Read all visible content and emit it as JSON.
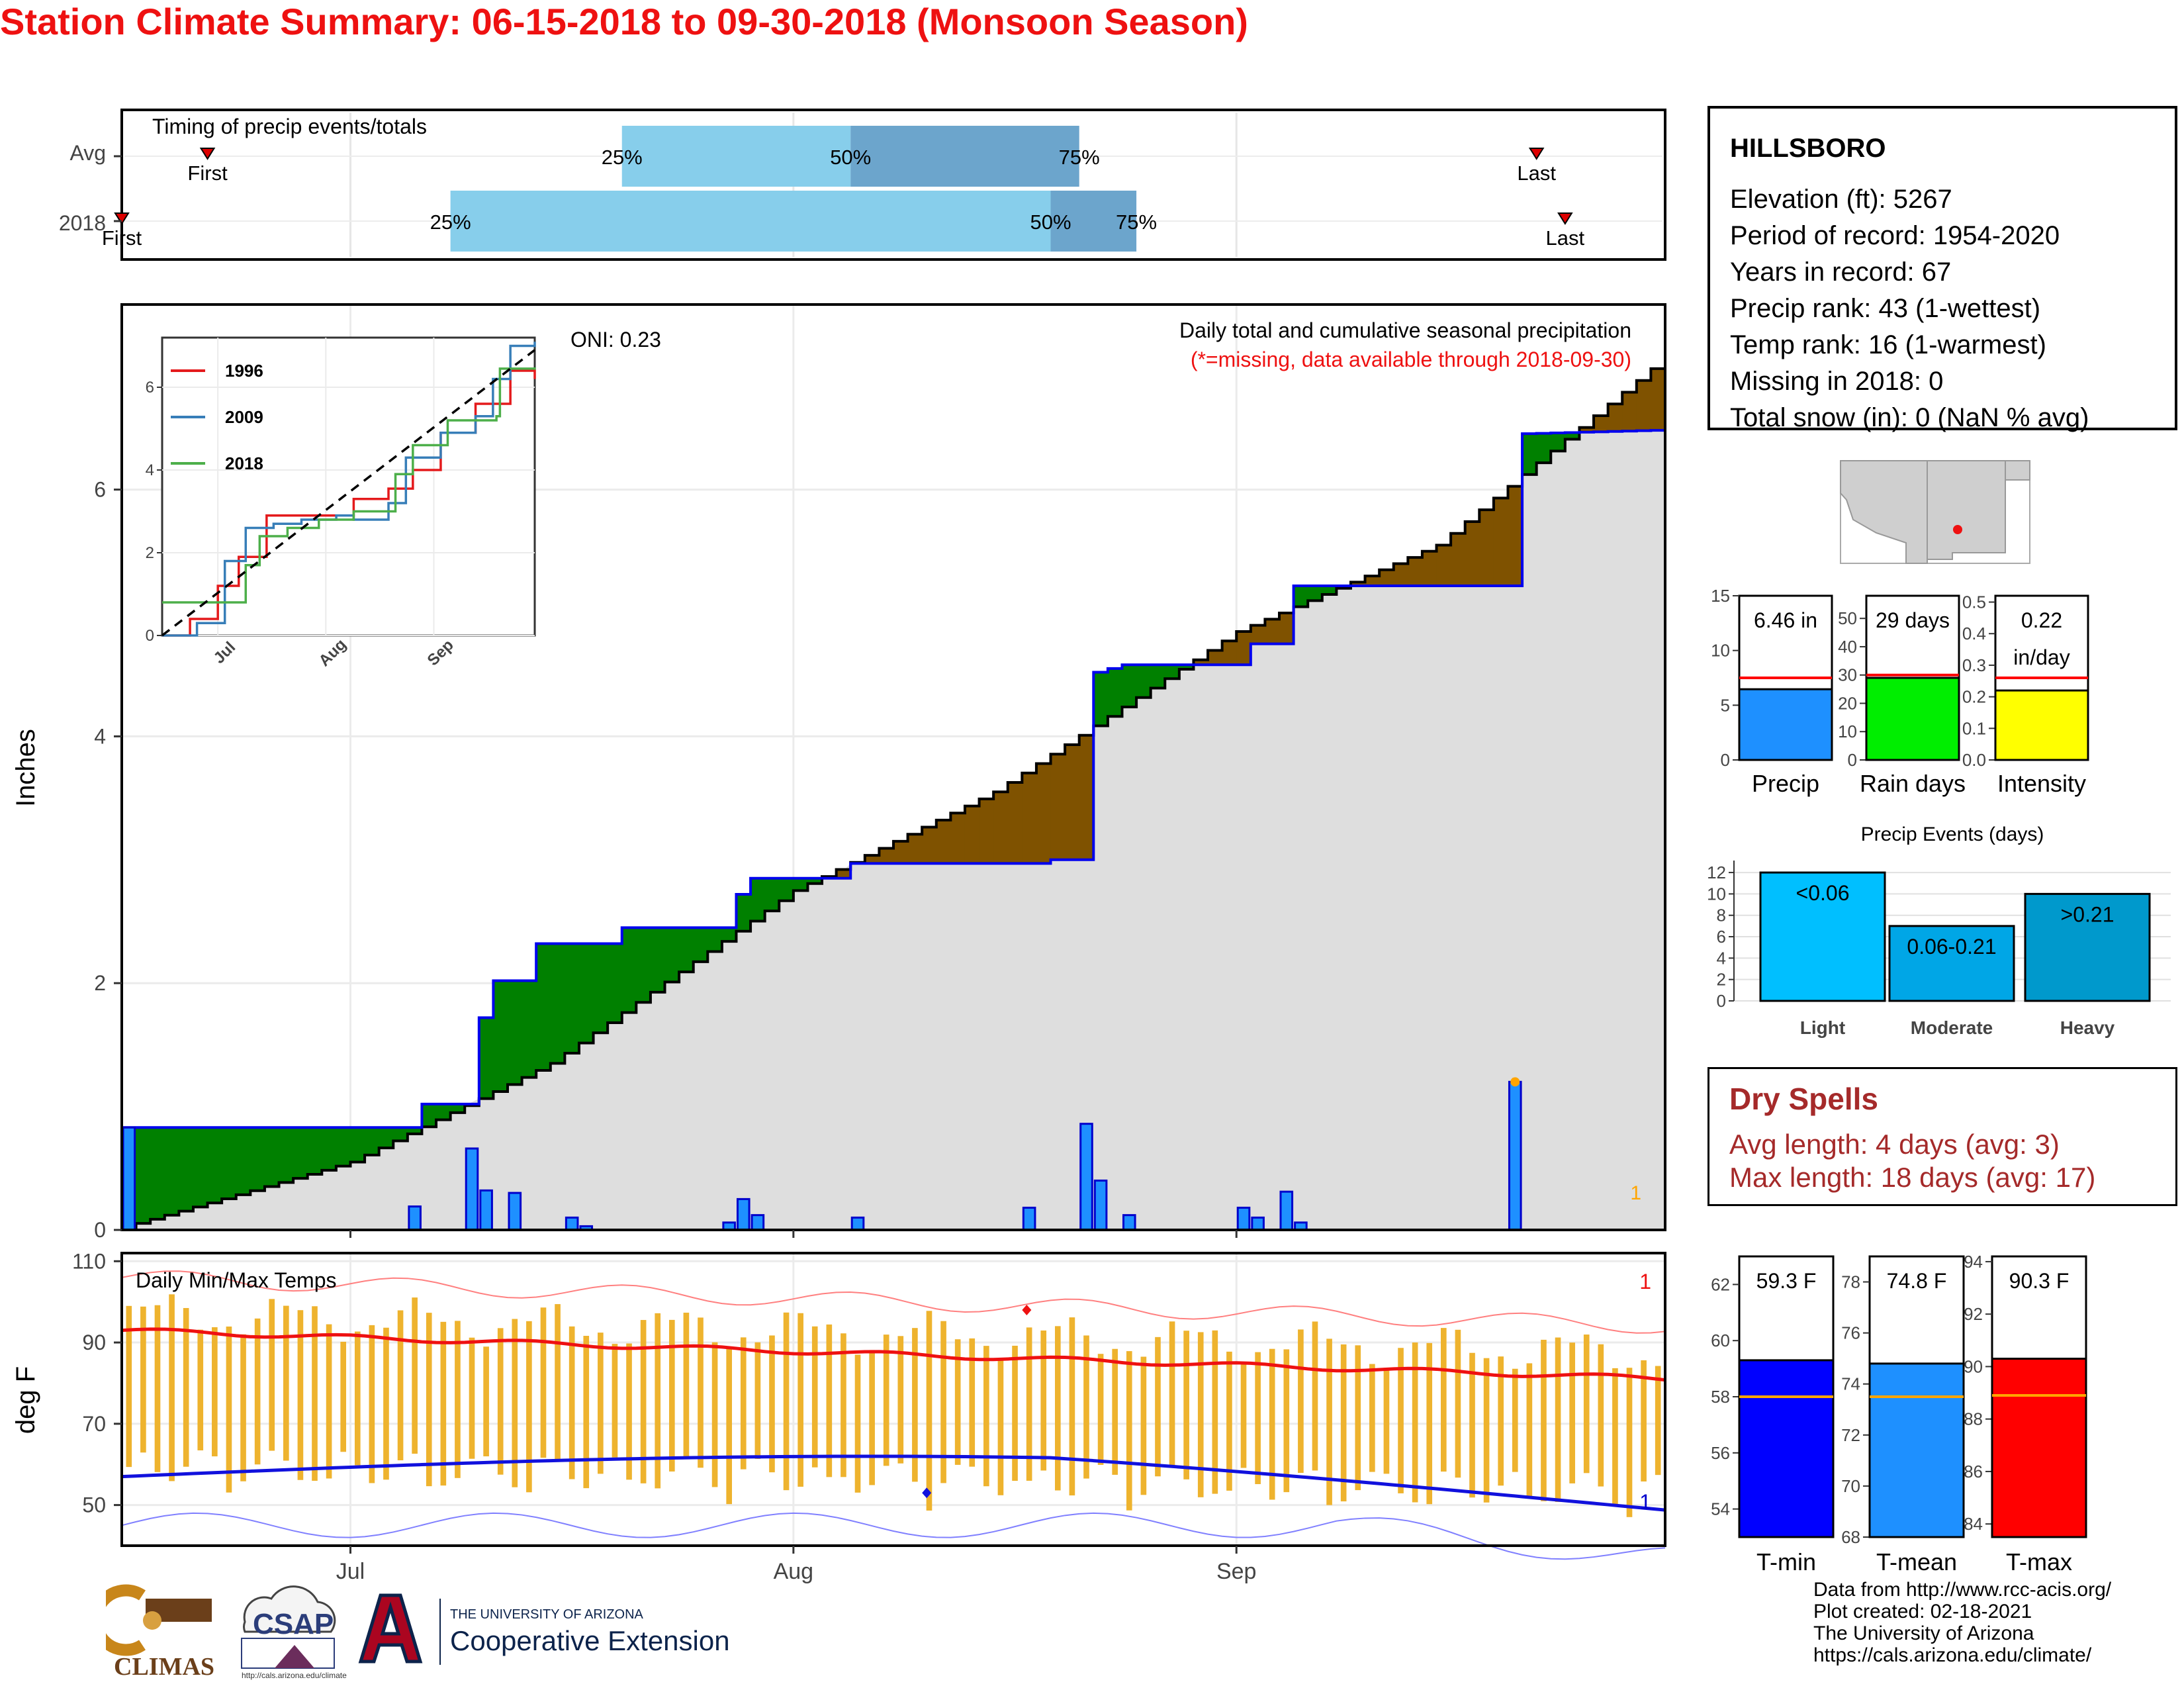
{
  "title": "Station Climate Summary: 06-15-2018 to 09-30-2018 (Monsoon Season)",
  "timing": {
    "label": "Timing of precip events/totals",
    "rows": [
      {
        "name": "Avg",
        "first_label": "First",
        "last_label": "Last",
        "first": "06-21",
        "last": "09-22",
        "q25": "07-20",
        "q50": "08-05",
        "q75": "08-21",
        "q25_label": "25%",
        "q50_label": "50%",
        "q75_label": "75%"
      },
      {
        "name": "2018",
        "first_label": "First",
        "last_label": "Last",
        "first": "06-15",
        "last": "09-24",
        "q25": "07-08",
        "q50": "08-19",
        "q75": "08-25",
        "q25_label": "25%",
        "q50_label": "50%",
        "q75_label": "75%"
      }
    ],
    "colors": {
      "light": "#87ceeb",
      "dark": "#6ca5cc",
      "marker": "#dd0000"
    }
  },
  "precip_panel": {
    "ylabel": "Inches",
    "yticks": [
      0,
      2,
      4,
      6
    ],
    "ylim": [
      0,
      7.5
    ],
    "annotation": "Daily total and cumulative seasonal precipitation",
    "note": "(*=missing, data available through 2018-09-30)",
    "oni": "ONI: 0.23",
    "corner_count": "1",
    "xticks": [
      "Jul",
      "Aug",
      "Sep"
    ]
  },
  "chart_data": [
    {
      "type": "area",
      "title": "Daily total and cumulative seasonal precipitation",
      "ylabel": "Inches",
      "x_start": "2018-06-15",
      "x_end": "2018-09-30",
      "ylim": [
        0,
        7.5
      ],
      "series": [
        {
          "name": "2018 cumulative",
          "color": "#0000ee",
          "points": [
            [
              "06-15",
              0.83
            ],
            [
              "07-05",
              0.83
            ],
            [
              "07-05",
              1.02
            ],
            [
              "07-09",
              1.02
            ],
            [
              "07-10",
              1.72
            ],
            [
              "07-11",
              2.02
            ],
            [
              "07-13",
              2.02
            ],
            [
              "07-13",
              2.32
            ],
            [
              "07-19",
              2.32
            ],
            [
              "07-19",
              2.37
            ],
            [
              "07-20",
              2.45
            ],
            [
              "07-27",
              2.45
            ],
            [
              "07-27",
              2.55
            ],
            [
              "07-28",
              2.72
            ],
            [
              "07-29",
              2.85
            ],
            [
              "08-04",
              2.85
            ],
            [
              "08-04",
              2.97
            ],
            [
              "08-18",
              2.97
            ],
            [
              "08-18",
              3.0
            ],
            [
              "08-21",
              3.0
            ],
            [
              "08-21",
              3.85
            ],
            [
              "08-22",
              4.52
            ],
            [
              "08-24",
              4.58
            ],
            [
              "09-01",
              4.58
            ],
            [
              "09-01",
              4.75
            ],
            [
              "09-02",
              4.75
            ],
            [
              "09-04",
              4.75
            ],
            [
              "09-04",
              5.22
            ],
            [
              "09-20",
              5.22
            ],
            [
              "09-20",
              6.45
            ],
            [
              "09-30",
              6.48
            ]
          ]
        },
        {
          "name": "Average cumulative",
          "color": "#000000",
          "points": [
            [
              "06-15",
              0.02
            ],
            [
              "07-01",
              0.55
            ],
            [
              "07-15",
              1.35
            ],
            [
              "08-01",
              2.75
            ],
            [
              "08-15",
              3.55
            ],
            [
              "09-01",
              4.85
            ],
            [
              "09-15",
              5.55
            ],
            [
              "09-30",
              6.98
            ]
          ]
        }
      ],
      "daily_bars": [
        [
          "06-15",
          0.83
        ],
        [
          "07-05",
          0.19
        ],
        [
          "07-09",
          0.66
        ],
        [
          "07-10",
          0.32
        ],
        [
          "07-12",
          0.3
        ],
        [
          "07-16",
          0.1
        ],
        [
          "07-17",
          0.03
        ],
        [
          "07-27",
          0.06
        ],
        [
          "07-28",
          0.25
        ],
        [
          "07-29",
          0.12
        ],
        [
          "08-05",
          0.1
        ],
        [
          "08-17",
          0.18
        ],
        [
          "08-21",
          0.86
        ],
        [
          "08-22",
          0.4
        ],
        [
          "08-24",
          0.12
        ],
        [
          "09-01",
          0.18
        ],
        [
          "09-02",
          0.1
        ],
        [
          "09-04",
          0.31
        ],
        [
          "09-05",
          0.06
        ],
        [
          "09-20",
          1.2
        ]
      ],
      "fill_colors": {
        "above": "#008000",
        "below": "#7f5200",
        "base": "#dedede",
        "bar": "#1e90ff"
      }
    },
    {
      "type": "line",
      "title": "",
      "ylabel": "",
      "xticks": [
        "Jul",
        "Aug",
        "Sep"
      ],
      "yticks": [
        0,
        2,
        4,
        6
      ],
      "series": [
        {
          "name": "1996",
          "color": "#e41a1c",
          "points": [
            [
              0,
              0
            ],
            [
              8,
              0.4
            ],
            [
              16,
              1.2
            ],
            [
              22,
              1.9
            ],
            [
              30,
              2.9
            ],
            [
              40,
              2.9
            ],
            [
              55,
              3.3
            ],
            [
              65,
              3.55
            ],
            [
              72,
              4.0
            ],
            [
              80,
              4.9
            ],
            [
              90,
              5.6
            ],
            [
              100,
              6.4
            ],
            [
              107,
              6.2
            ]
          ]
        },
        {
          "name": "2009",
          "color": "#377eb8",
          "points": [
            [
              0,
              0
            ],
            [
              10,
              0.3
            ],
            [
              18,
              1.8
            ],
            [
              24,
              2.6
            ],
            [
              32,
              2.7
            ],
            [
              40,
              2.8
            ],
            [
              50,
              2.9
            ],
            [
              55,
              2.8
            ],
            [
              65,
              3.2
            ],
            [
              70,
              4.3
            ],
            [
              80,
              4.9
            ],
            [
              90,
              5.3
            ],
            [
              95,
              6.2
            ],
            [
              100,
              7.0
            ],
            [
              107,
              7.1
            ]
          ]
        },
        {
          "name": "2018",
          "color": "#4daf4a",
          "points": [
            [
              0,
              0.8
            ],
            [
              20,
              0.8
            ],
            [
              24,
              1.7
            ],
            [
              28,
              2.4
            ],
            [
              36,
              2.6
            ],
            [
              45,
              2.8
            ],
            [
              55,
              3.0
            ],
            [
              65,
              3.0
            ],
            [
              67,
              3.9
            ],
            [
              72,
              4.6
            ],
            [
              80,
              4.6
            ],
            [
              82,
              5.2
            ],
            [
              96,
              5.3
            ],
            [
              97,
              6.45
            ],
            [
              107,
              6.48
            ]
          ]
        },
        {
          "name": "Average",
          "color": "#000000",
          "points": [
            [
              0,
              0
            ],
            [
              107,
              6.9
            ]
          ]
        }
      ]
    },
    {
      "type": "bar",
      "title": "Daily Min/Max Temps",
      "ylabel": "deg F",
      "yticks": [
        50,
        70,
        90,
        110
      ],
      "ylim": [
        40,
        112
      ],
      "max_record_label": "1",
      "min_record_label": "1"
    },
    {
      "type": "bar",
      "categories": [
        "Precip",
        "Rain days",
        "Intensity"
      ],
      "values": [
        6.46,
        29,
        0.22
      ],
      "value_labels": [
        "6.46 in",
        "29 days",
        "0.22\nin/day"
      ],
      "averages": [
        7.5,
        30,
        0.26
      ],
      "ylims": [
        [
          0,
          15
        ],
        [
          0,
          58
        ],
        [
          0,
          0.52
        ]
      ],
      "yticks": [
        [
          "0",
          "5",
          "10",
          "15"
        ],
        [
          "0",
          "10",
          "20",
          "30",
          "40",
          "50"
        ],
        [
          "0.0",
          "0.1",
          "0.2",
          "0.3",
          "0.4",
          "0.5"
        ]
      ],
      "colors": [
        "#1e90ff",
        "#00ee00",
        "#ffff00"
      ]
    },
    {
      "type": "bar",
      "title": "Precip Events (days)",
      "categories": [
        "Light",
        "Moderate",
        "Heavy"
      ],
      "values": [
        12,
        7,
        10
      ],
      "value_labels": [
        "<0.06",
        "0.06-0.21",
        ">0.21"
      ],
      "yticks": [
        "0",
        "2",
        "4",
        "6",
        "8",
        "10",
        "12"
      ],
      "ylim": [
        0,
        12.5
      ],
      "colors": [
        "#00bfff",
        "#00a6e6",
        "#0099cc"
      ]
    },
    {
      "type": "bar",
      "categories": [
        "T-min",
        "T-mean",
        "T-max"
      ],
      "values": [
        59.3,
        74.8,
        90.3
      ],
      "value_labels": [
        "59.3 F",
        "74.8 F",
        "90.3 F"
      ],
      "averages": [
        58.0,
        73.5,
        88.9
      ],
      "ylims": [
        [
          53,
          63
        ],
        [
          68,
          79
        ],
        [
          83.5,
          94.2
        ]
      ],
      "yticks": [
        [
          "54",
          "56",
          "58",
          "60",
          "62"
        ],
        [
          "68",
          "70",
          "72",
          "74",
          "76",
          "78"
        ],
        [
          "84",
          "86",
          "88",
          "90",
          "92",
          "94"
        ]
      ],
      "colors": [
        "#0000ff",
        "#1e90ff",
        "#ff0000"
      ]
    }
  ],
  "station": {
    "name": "HILLSBORO",
    "lines": [
      "Elevation (ft): 5267",
      "Period of record: 1954-2020",
      "Years in record: 67",
      "Precip rank: 43 (1-wettest)",
      "Temp rank: 16 (1-warmest)",
      "Missing in 2018: 0",
      "Total snow (in): 0 (NaN % avg)"
    ]
  },
  "dry_spells": {
    "title": "Dry Spells",
    "avg": "Avg length: 4 days (avg: 3)",
    "max": "Max length: 18 days (avg: 17)"
  },
  "credits": [
    "Data from http://www.rcc-acis.org/",
    "Plot created: 02-18-2021",
    "The University of Arizona",
    "https://cals.arizona.edu/climate/"
  ],
  "logos": {
    "climas": "CLIMAS",
    "csap": "CSAP",
    "csap_url": "http://cals.arizona.edu/climate",
    "ua_top": "THE UNIVERSITY OF ARIZONA",
    "ua_bottom": "Cooperative Extension"
  }
}
